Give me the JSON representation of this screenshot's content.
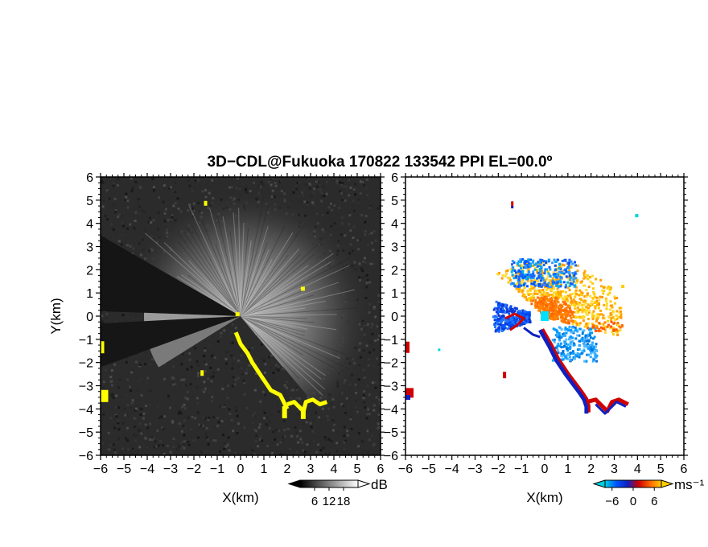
{
  "chart_data": {
    "type": "heatmap",
    "title": "3D−CDL@Fukuoka 170822 133542 PPI EL=00.0º",
    "panels": [
      {
        "id": "intensity",
        "xlabel": "X(km)",
        "ylabel": "Y(km)",
        "xlim": [
          -6,
          6
        ],
        "ylim": [
          -6,
          6
        ],
        "xticks": [
          "−6",
          "−5",
          "−4",
          "−3",
          "−2",
          "−1",
          "0",
          "1",
          "2",
          "3",
          "4",
          "5",
          "6"
        ],
        "yticks": [
          "−6",
          "−5",
          "−4",
          "−3",
          "−2",
          "−1",
          "0",
          "1",
          "2",
          "3",
          "4",
          "5",
          "6"
        ],
        "background_color": "#2b2b2b",
        "highlight_color": "#ffff00",
        "colorbar": {
          "unit": "dB",
          "ticks": [
            "6",
            "12",
            "18"
          ],
          "range": [
            0,
            24
          ],
          "colors": [
            "#000000",
            "#ffffff"
          ]
        }
      },
      {
        "id": "velocity",
        "xlabel": "X(km)",
        "ylabel": "",
        "xlim": [
          -6,
          6
        ],
        "ylim": [
          -6,
          6
        ],
        "xticks": [
          "−6",
          "−5",
          "−4",
          "−3",
          "−2",
          "−1",
          "0",
          "1",
          "2",
          "3",
          "4",
          "5",
          "6"
        ],
        "yticks": [
          "−6",
          "−5",
          "−4",
          "−3",
          "−2",
          "−1",
          "0",
          "1",
          "2",
          "3",
          "4",
          "5",
          "6"
        ],
        "colorbar": {
          "unit": "ms⁻¹",
          "ticks": [
            "−6",
            "0",
            "6"
          ],
          "range": [
            -8,
            8
          ],
          "colors": [
            "#00d0e0",
            "#0055ff",
            "#1020c0",
            "#d00000",
            "#ff6600",
            "#ffcc00"
          ]
        }
      }
    ]
  }
}
